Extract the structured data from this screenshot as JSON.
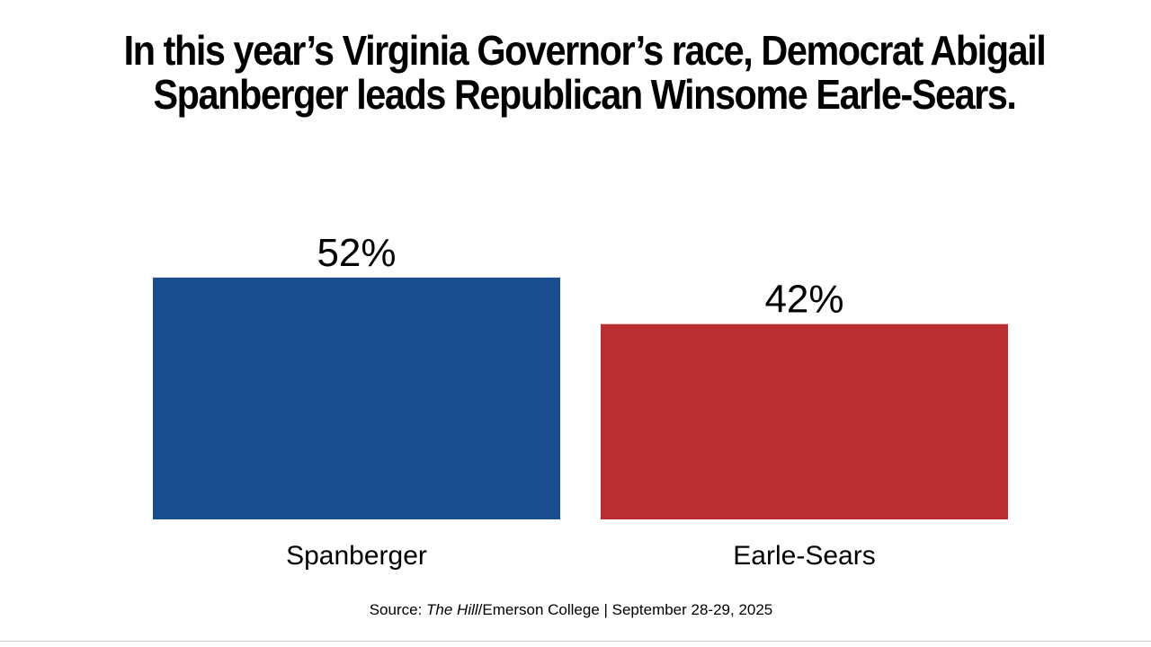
{
  "chart_data": {
    "type": "bar",
    "title_lines": [
      "In this year’s Virginia Governor’s race, Democrat Abigail",
      "Spanberger leads Republican Winsome Earle-Sears."
    ],
    "categories": [
      "Spanberger",
      "Earle-Sears"
    ],
    "values": [
      52,
      42
    ],
    "value_labels": [
      "52%",
      "42%"
    ],
    "colors": [
      "#184D8F",
      "#BA2D32"
    ],
    "ylim": [
      0,
      57
    ],
    "grid": false,
    "legend": "none"
  },
  "source": {
    "prefix": "Source: ",
    "publication": "The Hill",
    "rest": "/Emerson College | September 28-29, 2025"
  }
}
